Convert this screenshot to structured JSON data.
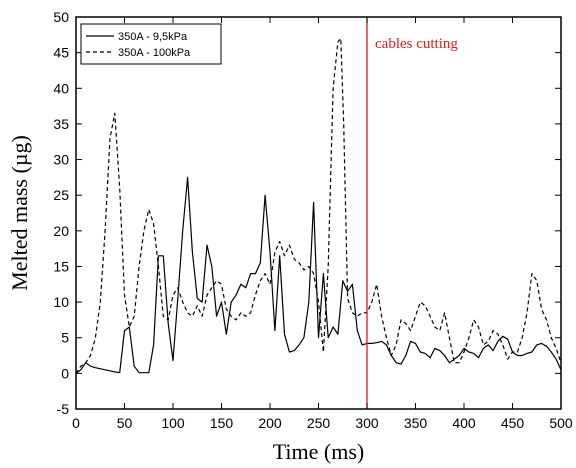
{
  "chart_data": {
    "type": "line",
    "title": "",
    "xlabel": "Time (ms)",
    "ylabel": "Melted mass (µg)",
    "xlim": [
      0,
      500
    ],
    "ylim": [
      -5,
      50
    ],
    "xticks": [
      "0",
      "50",
      "100",
      "150",
      "200",
      "250",
      "300",
      "350",
      "400",
      "450",
      "500"
    ],
    "yticks": [
      "-5",
      "0",
      "5",
      "10",
      "15",
      "20",
      "25",
      "30",
      "35",
      "40",
      "45",
      "50"
    ],
    "grid": false,
    "legend_position": "top-left",
    "series": [
      {
        "name": "350A - 9,5kPa",
        "style": "solid",
        "color": "#000000",
        "x": [
          0,
          5,
          10,
          15,
          20,
          30,
          40,
          45,
          50,
          55,
          60,
          65,
          75,
          80,
          85,
          90,
          95,
          100,
          105,
          110,
          115,
          120,
          125,
          130,
          135,
          140,
          145,
          150,
          155,
          160,
          165,
          170,
          175,
          180,
          185,
          190,
          195,
          200,
          205,
          210,
          215,
          220,
          225,
          230,
          235,
          240,
          245,
          250,
          255,
          260,
          265,
          270,
          275,
          280,
          285,
          290,
          295,
          300,
          305,
          310,
          315,
          320,
          325,
          330,
          335,
          340,
          345,
          350,
          355,
          360,
          365,
          370,
          375,
          380,
          385,
          390,
          395,
          400,
          405,
          410,
          415,
          420,
          425,
          430,
          435,
          440,
          445,
          450,
          455,
          460,
          465,
          470,
          475,
          480,
          485,
          490,
          495,
          500
        ],
        "y": [
          0,
          0.5,
          1.5,
          1.0,
          0.8,
          0.5,
          0.2,
          0.1,
          6.0,
          6.5,
          1.0,
          0.1,
          0.1,
          4.0,
          16.5,
          16.5,
          7.0,
          1.8,
          10.5,
          20.0,
          27.5,
          17.0,
          10.5,
          10.0,
          18.0,
          15.0,
          8.0,
          10.0,
          5.5,
          10.0,
          11.0,
          12.5,
          12.0,
          14.0,
          14.0,
          15.5,
          25.0,
          17.0,
          6.0,
          16.5,
          5.5,
          3.0,
          3.2,
          4.0,
          5.0,
          10.0,
          24.0,
          5.0,
          14.0,
          5.0,
          6.5,
          5.5,
          13.0,
          11.5,
          12.5,
          6.0,
          4.0,
          4.2,
          4.2,
          4.3,
          4.5,
          4.0,
          2.5,
          1.5,
          1.3,
          2.5,
          4.5,
          4.2,
          3.0,
          2.8,
          2.2,
          3.5,
          3.2,
          2.5,
          1.5,
          2.0,
          2.5,
          3.5,
          3.0,
          2.8,
          2.2,
          3.5,
          4.0,
          3.2,
          4.5,
          5.2,
          4.8,
          3.0,
          2.5,
          2.5,
          2.8,
          3.0,
          4.0,
          4.2,
          3.8,
          3.0,
          2.0,
          0.5
        ]
      },
      {
        "name": "350A - 100kPa",
        "style": "dashed",
        "color": "#000000",
        "x": [
          0,
          5,
          10,
          15,
          20,
          25,
          30,
          35,
          40,
          45,
          50,
          55,
          60,
          65,
          70,
          75,
          80,
          85,
          90,
          95,
          100,
          105,
          110,
          115,
          120,
          125,
          130,
          135,
          140,
          145,
          150,
          155,
          160,
          165,
          170,
          175,
          180,
          185,
          190,
          195,
          200,
          205,
          210,
          215,
          220,
          225,
          230,
          235,
          240,
          245,
          250,
          255,
          260,
          265,
          270,
          273,
          276,
          280,
          285,
          290,
          295,
          300,
          305,
          310,
          315,
          320,
          325,
          330,
          335,
          340,
          345,
          350,
          355,
          360,
          365,
          370,
          375,
          380,
          385,
          390,
          395,
          400,
          405,
          410,
          415,
          420,
          425,
          430,
          435,
          440,
          445,
          450,
          455,
          460,
          465,
          470,
          475,
          480,
          485,
          490,
          495,
          500
        ],
        "y": [
          0,
          1.0,
          1.5,
          2.5,
          5.0,
          10.0,
          20.0,
          33.0,
          36.5,
          26.0,
          11.0,
          6.5,
          8.0,
          15.0,
          20.0,
          23.0,
          21.0,
          15.0,
          8.0,
          7.5,
          11.0,
          12.0,
          10.0,
          8.5,
          8.0,
          9.5,
          8.0,
          11.0,
          12.0,
          13.0,
          12.5,
          9.0,
          8.0,
          7.5,
          8.5,
          8.0,
          8.5,
          11.0,
          13.0,
          14.0,
          12.5,
          17.0,
          18.5,
          16.5,
          18.0,
          16.0,
          15.5,
          14.5,
          15.0,
          14.0,
          10.0,
          3.0,
          15.0,
          40.0,
          46.5,
          47.0,
          35.0,
          10.5,
          8.5,
          8.0,
          8.5,
          8.5,
          10.0,
          12.5,
          8.0,
          5.0,
          2.5,
          4.0,
          7.5,
          7.0,
          6.0,
          8.0,
          10.0,
          9.5,
          8.0,
          6.5,
          6.0,
          8.5,
          5.0,
          1.5,
          1.5,
          3.0,
          5.0,
          7.5,
          6.5,
          4.0,
          4.5,
          6.0,
          5.5,
          4.0,
          2.0,
          3.0,
          3.0,
          5.0,
          8.5,
          14.0,
          13.0,
          9.0,
          7.5,
          5.0,
          3.5,
          1.5
        ]
      }
    ],
    "annotations": [
      {
        "type": "vline",
        "x": 300,
        "color": "#d81e1e",
        "label": "cables cutting"
      }
    ]
  }
}
